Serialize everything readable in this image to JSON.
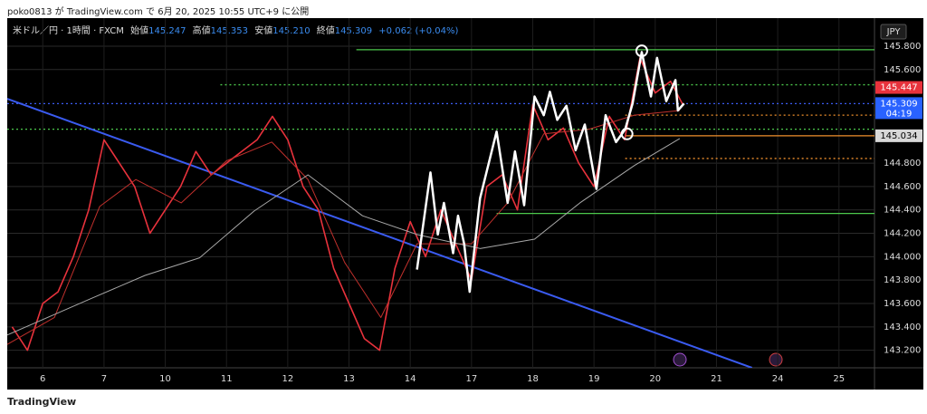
{
  "header": {
    "publisher": "poko0813 が TradingView.com で 6月 20, 2025 10:55 UTC+9 に公開"
  },
  "footer": {
    "brand": "TradingView"
  },
  "chart_data": {
    "type": "line",
    "legend_text": {
      "symbol": "米ドル／円 · 1時間 · FXCM",
      "open_label": "始値",
      "open": "145.247",
      "high_label": "高値",
      "high": "145.353",
      "low_label": "安値",
      "low": "145.210",
      "close_label": "終値",
      "close": "145.309",
      "change": "+0.062 (+0.04%)"
    },
    "currency": "JPY",
    "xlim": [
      -0.58,
      13.58
    ],
    "ylim": [
      143.05,
      146.04
    ],
    "xticks": [
      {
        "value": 0,
        "label": "6"
      },
      {
        "value": 1,
        "label": "7"
      },
      {
        "value": 2,
        "label": "10"
      },
      {
        "value": 3,
        "label": "11"
      },
      {
        "value": 4,
        "label": "12"
      },
      {
        "value": 5,
        "label": "13"
      },
      {
        "value": 6,
        "label": "14"
      },
      {
        "value": 7,
        "label": "17"
      },
      {
        "value": 8,
        "label": "18"
      },
      {
        "value": 9,
        "label": "19"
      },
      {
        "value": 10,
        "label": "20"
      },
      {
        "value": 11,
        "label": "21"
      },
      {
        "value": 12,
        "label": "24"
      },
      {
        "value": 13,
        "label": "25"
      }
    ],
    "yticks": [
      {
        "value": 145.8,
        "label": "145.800"
      },
      {
        "value": 145.6,
        "label": "145.600"
      },
      {
        "value": 144.8,
        "label": "144.800"
      },
      {
        "value": 144.6,
        "label": "144.600"
      },
      {
        "value": 144.4,
        "label": "144.400"
      },
      {
        "value": 144.2,
        "label": "144.200"
      },
      {
        "value": 144,
        "label": "144.000"
      },
      {
        "value": 143.8,
        "label": "143.800"
      },
      {
        "value": 143.6,
        "label": "143.600"
      },
      {
        "value": 143.4,
        "label": "143.400"
      },
      {
        "value": 143.2,
        "label": "143.200"
      }
    ],
    "grid": true,
    "series": [
      {
        "name": "price",
        "color": "#e8323c",
        "width": 1.6,
        "x": [
          -0.5,
          -0.25,
          0,
          0.25,
          0.5,
          0.75,
          1.0,
          1.25,
          1.5,
          1.75,
          2.0,
          2.25,
          2.5,
          2.75,
          3.0,
          3.25,
          3.5,
          3.75,
          4.0,
          4.25,
          4.5,
          4.75,
          5.0,
          5.25,
          5.5,
          5.75,
          6.0,
          6.25,
          6.5,
          6.75,
          7.0,
          7.25,
          7.5,
          7.75,
          8.0,
          8.25,
          8.5,
          8.75,
          9.0,
          9.25,
          9.5,
          9.75,
          10.0,
          10.25,
          10.45
        ],
        "values": [
          143.4,
          143.2,
          143.6,
          143.7,
          144.0,
          144.4,
          145.0,
          144.8,
          144.6,
          144.2,
          144.4,
          144.6,
          144.9,
          144.7,
          144.8,
          144.9,
          145.0,
          145.2,
          145.0,
          144.6,
          144.4,
          143.9,
          143.6,
          143.3,
          143.2,
          143.9,
          144.3,
          144.0,
          144.4,
          144.1,
          143.8,
          144.6,
          144.7,
          144.4,
          145.3,
          145.0,
          145.1,
          144.8,
          144.6,
          145.2,
          145.0,
          145.7,
          145.4,
          145.5,
          145.3
        ]
      },
      {
        "name": "ma-short",
        "color": "#c0302c",
        "width": 1,
        "x": [
          -0.58,
          0.19,
          0.93,
          1.52,
          2.26,
          3.0,
          3.74,
          4.33,
          4.93,
          5.52,
          6.11,
          7.0,
          7.59,
          8.18,
          8.92,
          9.66,
          10.4
        ],
        "values": [
          143.25,
          143.48,
          144.43,
          144.66,
          144.46,
          144.82,
          144.98,
          144.66,
          143.95,
          143.48,
          144.11,
          144.11,
          144.46,
          145.05,
          145.09,
          145.21,
          145.25
        ]
      },
      {
        "name": "ma-long",
        "color": "#a8a8a8",
        "width": 1,
        "x": [
          -0.58,
          0.78,
          1.67,
          2.56,
          3.45,
          4.33,
          5.22,
          6.11,
          7.14,
          8.03,
          8.77,
          9.66,
          10.4
        ],
        "values": [
          143.33,
          143.64,
          143.84,
          143.99,
          144.39,
          144.7,
          144.35,
          144.19,
          144.07,
          144.15,
          144.46,
          144.78,
          145.01
        ]
      },
      {
        "name": "zigzag",
        "color": "#ffffff",
        "width": 2.5,
        "x": [
          6.11,
          6.33,
          6.45,
          6.55,
          6.7,
          6.78,
          6.88,
          6.97,
          7.14,
          7.41,
          7.59,
          7.71,
          7.86,
          8.03,
          8.18,
          8.28,
          8.4,
          8.55,
          8.7,
          8.85,
          9.04,
          9.19,
          9.36,
          9.51,
          9.63,
          9.78,
          9.93,
          10.03,
          10.18,
          10.33,
          10.37,
          10.47
        ],
        "values": [
          143.89,
          144.72,
          144.19,
          144.46,
          144.03,
          144.35,
          144.11,
          143.7,
          144.5,
          145.07,
          144.46,
          144.9,
          144.44,
          145.37,
          145.21,
          145.41,
          145.17,
          145.29,
          144.91,
          145.13,
          144.58,
          145.21,
          144.98,
          145.09,
          145.31,
          145.75,
          145.37,
          145.7,
          145.33,
          145.51,
          145.25,
          145.31
        ]
      }
    ],
    "trendline": {
      "color": "#3a5bf0",
      "x": [
        -0.58,
        11.58
      ],
      "values": [
        145.35,
        143.05
      ]
    },
    "levels": [
      {
        "value": 145.77,
        "from": 5.12,
        "color": "#4cc84c",
        "dash": false
      },
      {
        "value": 145.47,
        "from": 2.9,
        "color": "#4cc84c",
        "dash": true
      },
      {
        "value": 145.09,
        "from": -0.58,
        "color": "#4cc84c",
        "dash": true
      },
      {
        "value": 145.21,
        "from": 9.51,
        "color": "#f0902c",
        "dash": true
      },
      {
        "value": 145.034,
        "from": 9.51,
        "color": "#f0902c",
        "dash": false
      },
      {
        "value": 144.84,
        "from": 9.51,
        "color": "#f0902c",
        "dash": true
      },
      {
        "value": 144.37,
        "from": 7.41,
        "color": "#4cc84c",
        "dash": false
      },
      {
        "value": 145.309,
        "from": -0.58,
        "color": "#3a5bf0",
        "dash": true
      }
    ],
    "markers": [
      {
        "x": 9.78,
        "value": 145.76
      },
      {
        "x": 9.54,
        "value": 145.05
      }
    ],
    "badges": [
      {
        "value": 145.447,
        "label": "145.447",
        "color": "#e8323c"
      },
      {
        "value": 145.309,
        "label": "145.309",
        "sub": "04:19",
        "color": "#2962ff"
      },
      {
        "value": 145.034,
        "label": "145.034",
        "color": "#d8d8d8"
      }
    ]
  }
}
